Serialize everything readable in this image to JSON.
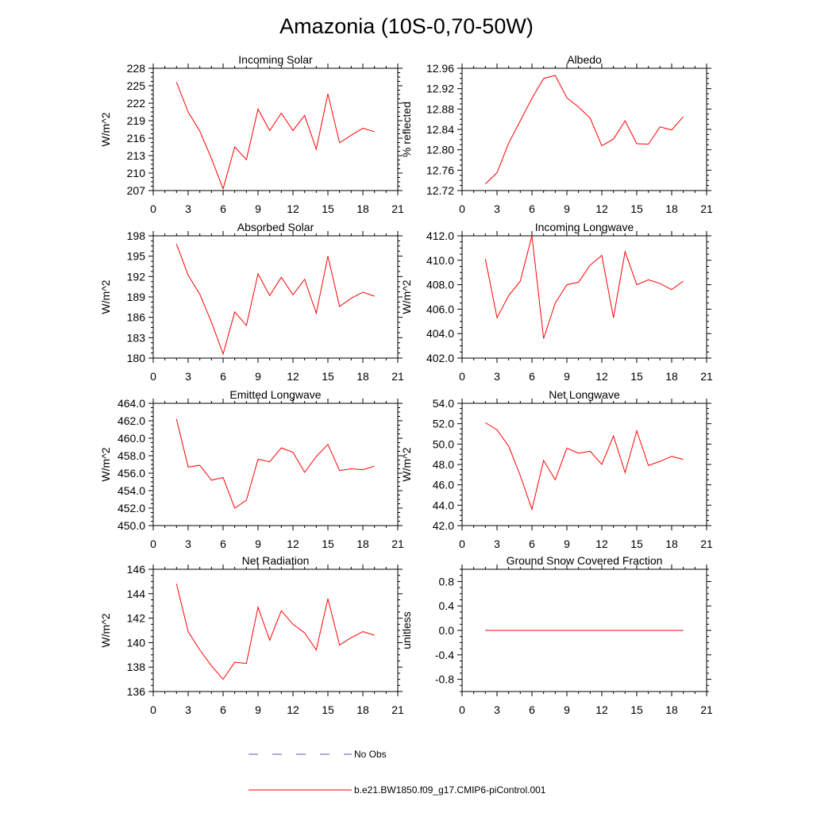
{
  "figure": {
    "title": "Amazonia (10S-0,70-50W)"
  },
  "colors": {
    "model_line": "#ff0000",
    "obs_line": "#5a5ab4",
    "axis": "#000000"
  },
  "legend": {
    "entries": [
      {
        "label": "No Obs",
        "style": "dashed",
        "color": "#5a5ab4"
      },
      {
        "label": "b.e21.BW1850.f09_g17.CMIP6-piControl.001",
        "style": "solid",
        "color": "#ff0000"
      }
    ]
  },
  "chart_data": [
    {
      "type": "line",
      "title": "Incoming Solar",
      "ylabel": "W/m^2",
      "xlabel": "",
      "xlim": [
        0,
        21
      ],
      "ylim": [
        207,
        228
      ],
      "xticks": [
        0,
        3,
        6,
        9,
        12,
        15,
        18,
        21
      ],
      "yticks": [
        "207",
        "210",
        "213",
        "216",
        "219",
        "222",
        "225",
        "228"
      ],
      "series": [
        {
          "name": "b.e21.BW1850.f09_g17.CMIP6-piControl.001",
          "x": [
            2,
            3,
            4,
            5,
            6,
            7,
            8,
            9,
            10,
            11,
            12,
            13,
            14,
            15,
            16,
            17,
            18,
            19
          ],
          "values": [
            225.6,
            220.5,
            217.2,
            212.5,
            207.3,
            214.5,
            212.3,
            221.0,
            217.3,
            220.3,
            217.3,
            219.9,
            214.1,
            223.6,
            215.2,
            216.5,
            217.7,
            217.1
          ]
        }
      ]
    },
    {
      "type": "line",
      "title": "Albedo",
      "ylabel": "% reflected",
      "xlabel": "",
      "xlim": [
        0,
        21
      ],
      "ylim": [
        12.72,
        12.96
      ],
      "xticks": [
        0,
        3,
        6,
        9,
        12,
        15,
        18,
        21
      ],
      "yticks": [
        "12.72",
        "12.76",
        "12.80",
        "12.84",
        "12.88",
        "12.92",
        "12.96"
      ],
      "series": [
        {
          "name": "b.e21.BW1850.f09_g17.CMIP6-piControl.001",
          "x": [
            2,
            3,
            4,
            5,
            6,
            7,
            8,
            9,
            10,
            11,
            12,
            13,
            14,
            15,
            16,
            17,
            18,
            19
          ],
          "values": [
            12.733,
            12.755,
            12.813,
            12.857,
            12.901,
            12.94,
            12.946,
            12.902,
            12.884,
            12.862,
            12.808,
            12.821,
            12.857,
            12.812,
            12.811,
            12.845,
            12.839,
            12.865
          ]
        }
      ]
    },
    {
      "type": "line",
      "title": "Absorbed Solar",
      "ylabel": "W/m^2",
      "xlabel": "",
      "xlim": [
        0,
        21
      ],
      "ylim": [
        180,
        198
      ],
      "xticks": [
        0,
        3,
        6,
        9,
        12,
        15,
        18,
        21
      ],
      "yticks": [
        "180",
        "183",
        "186",
        "189",
        "192",
        "195",
        "198"
      ],
      "series": [
        {
          "name": "b.e21.BW1850.f09_g17.CMIP6-piControl.001",
          "x": [
            2,
            3,
            4,
            5,
            6,
            7,
            8,
            9,
            10,
            11,
            12,
            13,
            14,
            15,
            16,
            17,
            18,
            19
          ],
          "values": [
            196.8,
            192.2,
            189.4,
            185.3,
            180.6,
            186.8,
            184.8,
            192.4,
            189.2,
            191.9,
            189.3,
            191.6,
            186.6,
            195.0,
            187.6,
            188.8,
            189.7,
            189.1
          ]
        }
      ]
    },
    {
      "type": "line",
      "title": "Incoming Longwave",
      "ylabel": "W/m^2",
      "xlabel": "",
      "xlim": [
        0,
        21
      ],
      "ylim": [
        402,
        412
      ],
      "xticks": [
        0,
        3,
        6,
        9,
        12,
        15,
        18,
        21
      ],
      "yticks": [
        "402.0",
        "404.0",
        "406.0",
        "408.0",
        "410.0",
        "412.0"
      ],
      "series": [
        {
          "name": "b.e21.BW1850.f09_g17.CMIP6-piControl.001",
          "x": [
            2,
            3,
            4,
            5,
            6,
            7,
            8,
            9,
            10,
            11,
            12,
            13,
            14,
            15,
            16,
            17,
            18,
            19
          ],
          "values": [
            410.1,
            405.3,
            407.1,
            408.3,
            412.0,
            403.6,
            406.5,
            408.0,
            408.2,
            409.6,
            410.4,
            405.3,
            410.7,
            408.0,
            408.4,
            408.1,
            407.6,
            408.3
          ]
        }
      ]
    },
    {
      "type": "line",
      "title": "Emitted Longwave",
      "ylabel": "W/m^2",
      "xlabel": "",
      "xlim": [
        0,
        21
      ],
      "ylim": [
        450,
        464
      ],
      "xticks": [
        0,
        3,
        6,
        9,
        12,
        15,
        18,
        21
      ],
      "yticks": [
        "450.0",
        "452.0",
        "454.0",
        "456.0",
        "458.0",
        "460.0",
        "462.0",
        "464.0"
      ],
      "series": [
        {
          "name": "b.e21.BW1850.f09_g17.CMIP6-piControl.001",
          "x": [
            2,
            3,
            4,
            5,
            6,
            7,
            8,
            9,
            10,
            11,
            12,
            13,
            14,
            15,
            16,
            17,
            18,
            19
          ],
          "values": [
            462.2,
            456.7,
            456.9,
            455.2,
            455.5,
            452.0,
            452.9,
            457.6,
            457.3,
            458.9,
            458.4,
            456.1,
            457.9,
            459.3,
            456.3,
            456.5,
            456.4,
            456.8
          ]
        }
      ]
    },
    {
      "type": "line",
      "title": "Net Longwave",
      "ylabel": "W/m^2",
      "xlabel": "",
      "xlim": [
        0,
        21
      ],
      "ylim": [
        42,
        54
      ],
      "xticks": [
        0,
        3,
        6,
        9,
        12,
        15,
        18,
        21
      ],
      "yticks": [
        "42.0",
        "44.0",
        "46.0",
        "48.0",
        "50.0",
        "52.0",
        "54.0"
      ],
      "series": [
        {
          "name": "b.e21.BW1850.f09_g17.CMIP6-piControl.001",
          "x": [
            2,
            3,
            4,
            5,
            6,
            7,
            8,
            9,
            10,
            11,
            12,
            13,
            14,
            15,
            16,
            17,
            18,
            19
          ],
          "values": [
            52.1,
            51.4,
            49.8,
            46.9,
            43.6,
            48.4,
            46.5,
            49.6,
            49.1,
            49.3,
            48.0,
            50.8,
            47.2,
            51.3,
            47.9,
            48.3,
            48.8,
            48.5
          ]
        }
      ]
    },
    {
      "type": "line",
      "title": "Net Radiation",
      "ylabel": "W/m^2",
      "xlabel": "",
      "xlim": [
        0,
        21
      ],
      "ylim": [
        136,
        146
      ],
      "xticks": [
        0,
        3,
        6,
        9,
        12,
        15,
        18,
        21
      ],
      "yticks": [
        "136",
        "138",
        "140",
        "142",
        "144",
        "146"
      ],
      "series": [
        {
          "name": "b.e21.BW1850.f09_g17.CMIP6-piControl.001",
          "x": [
            2,
            3,
            4,
            5,
            6,
            7,
            8,
            9,
            10,
            11,
            12,
            13,
            14,
            15,
            16,
            17,
            18,
            19
          ],
          "values": [
            144.8,
            140.9,
            139.4,
            138.1,
            137.0,
            138.4,
            138.3,
            142.9,
            140.2,
            142.6,
            141.5,
            140.8,
            139.4,
            143.6,
            139.8,
            140.4,
            140.9,
            140.6
          ]
        }
      ]
    },
    {
      "type": "line",
      "title": "Ground Snow Covered Fraction",
      "ylabel": "unitless",
      "xlabel": "",
      "xlim": [
        0,
        21
      ],
      "ylim": [
        -1.0,
        1.0
      ],
      "xticks": [
        0,
        3,
        6,
        9,
        12,
        15,
        18,
        21
      ],
      "yticks": [
        "-0.8",
        "-0.4",
        "0.0",
        "0.4",
        "0.8"
      ],
      "series": [
        {
          "name": "b.e21.BW1850.f09_g17.CMIP6-piControl.001",
          "x": [
            2,
            3,
            4,
            5,
            6,
            7,
            8,
            9,
            10,
            11,
            12,
            13,
            14,
            15,
            16,
            17,
            18,
            19
          ],
          "values": [
            0,
            0,
            0,
            0,
            0,
            0,
            0,
            0,
            0,
            0,
            0,
            0,
            0,
            0,
            0,
            0,
            0,
            0
          ]
        }
      ]
    }
  ]
}
